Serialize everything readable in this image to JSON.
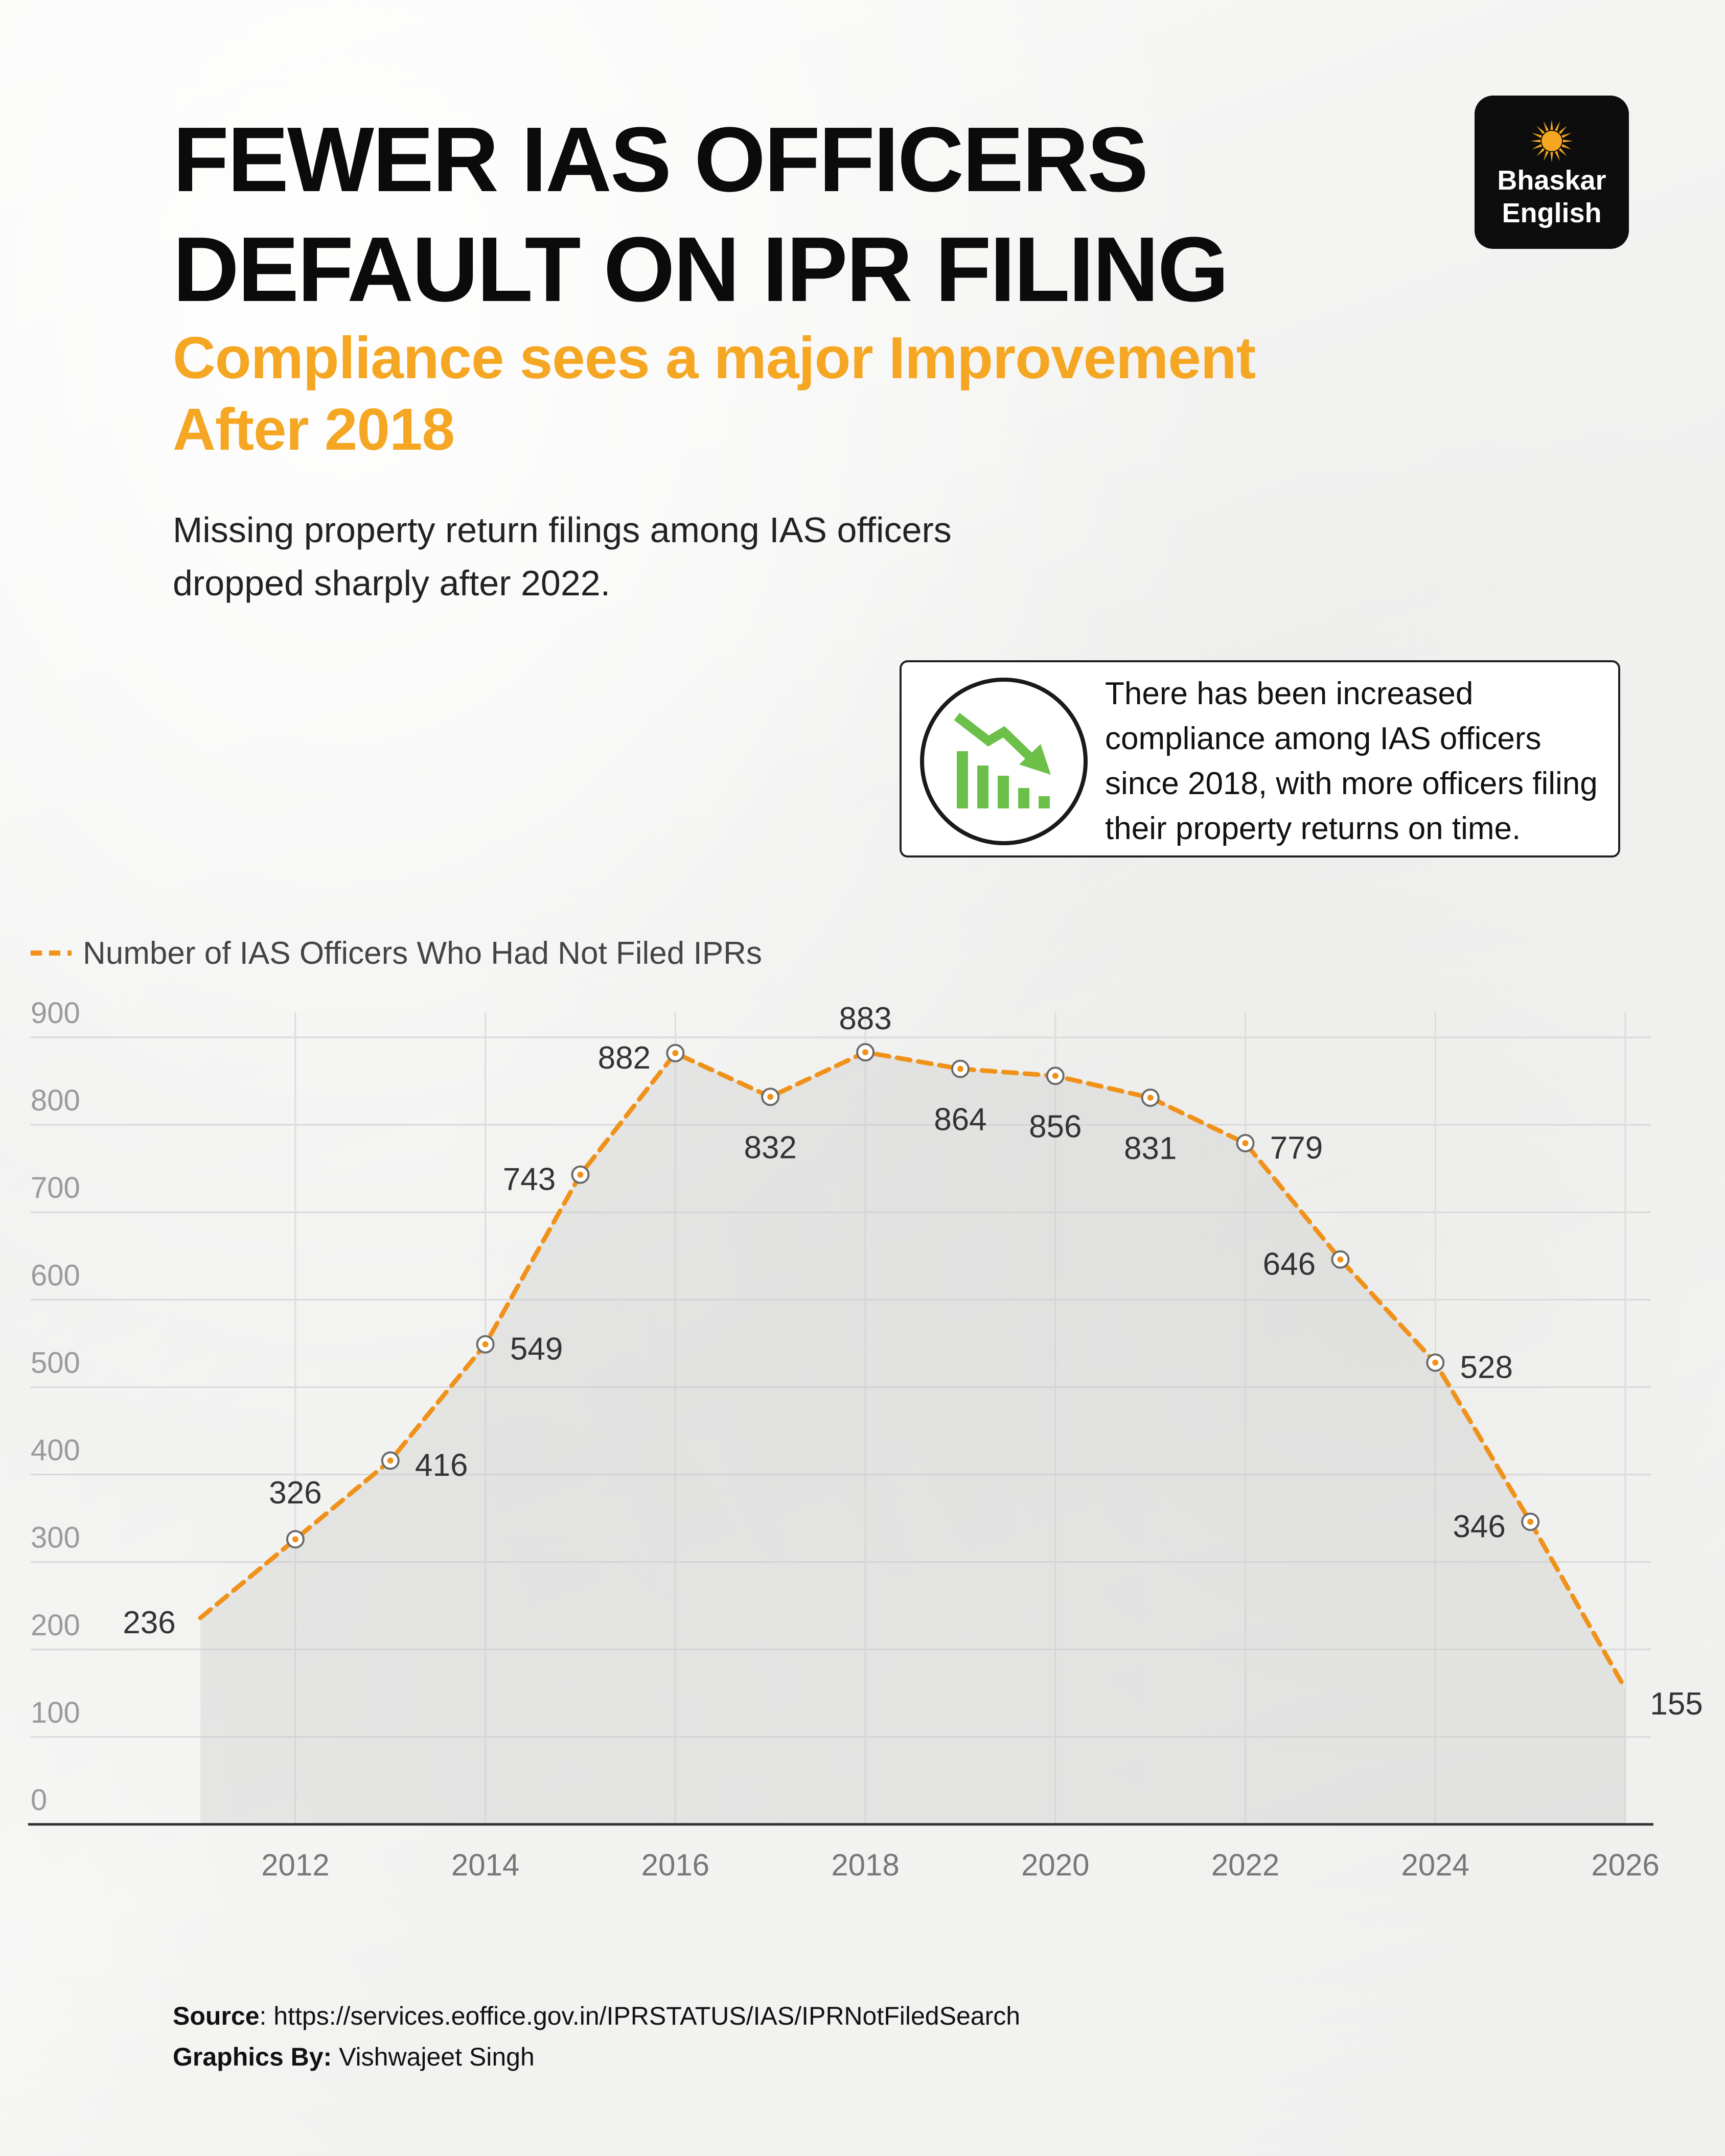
{
  "header": {
    "title_line1": "FEWER IAS OFFICERS",
    "title_line2": "DEFAULT ON IPR FILING",
    "subtitle_line1": "Compliance sees a major Improvement",
    "subtitle_line2": "After 2018",
    "lede_line1": "Missing property return filings among IAS officers",
    "lede_line2": "dropped sharply after 2022."
  },
  "logo": {
    "line1": "Bhaskar",
    "line2": "English",
    "icon": "sun-icon"
  },
  "callout": {
    "icon": "declining-bar-chart-icon",
    "line1": "There has been increased",
    "line2": "compliance among IAS officers",
    "line3": "since 2018, with more officers filing",
    "line4": "their property returns on time."
  },
  "colors": {
    "accent": "#f5a623",
    "line": "#f0921a",
    "icon_green": "#6cc04a"
  },
  "footer": {
    "source_label": "Source",
    "source_text": ": https://services.eoffice.gov.in/IPRSTATUS/IAS/IPRNotFiledSearch",
    "graphics_label": "Graphics By:",
    "graphics_text": " Vishwajeet Singh"
  },
  "chart_data": {
    "type": "line",
    "title": "",
    "xlabel": "",
    "ylabel": "",
    "legend": "top-left",
    "grid": true,
    "xlim": [
      2011,
      2026
    ],
    "ylim": [
      0,
      900
    ],
    "x_ticks": [
      2012,
      2014,
      2016,
      2018,
      2020,
      2022,
      2024,
      2026
    ],
    "y_ticks": [
      0,
      100,
      200,
      300,
      400,
      500,
      600,
      700,
      800,
      900
    ],
    "series": [
      {
        "name": "Number of IAS Officers Who Had Not Filed IPRs",
        "x": [
          2011,
          2012,
          2013,
          2014,
          2015,
          2016,
          2017,
          2018,
          2019,
          2020,
          2021,
          2022,
          2023,
          2024,
          2025,
          2026
        ],
        "values": [
          236,
          326,
          416,
          549,
          743,
          882,
          832,
          883,
          864,
          856,
          831,
          779,
          646,
          528,
          346,
          155
        ]
      }
    ]
  }
}
